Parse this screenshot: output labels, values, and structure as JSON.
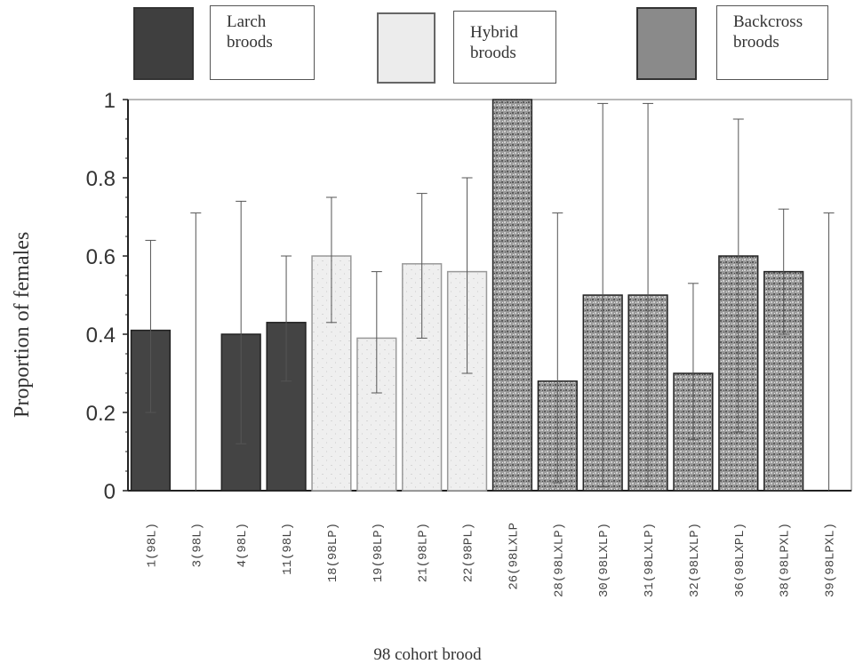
{
  "legend": {
    "items": [
      {
        "label": "Larch\nbroods",
        "fill": "#444444"
      },
      {
        "label": "Hybrid\nbroods",
        "fill": "#e8e8e8"
      },
      {
        "label": "Backcross\nbroods",
        "fill": "#8a8a8a"
      }
    ]
  },
  "chart_data": {
    "type": "bar",
    "title": "",
    "xlabel": "98 cohort brood",
    "ylabel": "Proportion of females",
    "ylim": [
      0,
      1
    ],
    "yticks": [
      "0",
      "0.2",
      "0.4",
      "0.6",
      "0.8",
      "1"
    ],
    "grid": false,
    "categories": [
      "1(98L)",
      "3(98L)",
      "4(98L)",
      "11(98L)",
      "18(98LP)",
      "19(98LP)",
      "21(98LP)",
      "22(98PL)",
      "26(98LXLP",
      "28(98LXLP)",
      "30(98LXLP)",
      "31(98LXLP)",
      "32(98LXLP)",
      "36(98LXPL)",
      "38(98LPXL)",
      "39(98LPXL)"
    ],
    "groups": [
      "Larch",
      "Larch",
      "Larch",
      "Larch",
      "Hybrid",
      "Hybrid",
      "Hybrid",
      "Hybrid",
      "Backcross",
      "Backcross",
      "Backcross",
      "Backcross",
      "Backcross",
      "Backcross",
      "Backcross",
      "Backcross"
    ],
    "values": [
      0.41,
      0,
      0.4,
      0.43,
      0.6,
      0.39,
      0.58,
      0.56,
      1.0,
      0.28,
      0.5,
      0.5,
      0.3,
      0.6,
      0.56,
      0
    ],
    "error_lower": [
      0.2,
      0,
      0.12,
      0.28,
      0.43,
      0.25,
      0.39,
      0.3,
      1.0,
      0.02,
      0.01,
      0.01,
      0.13,
      0.15,
      0.4,
      0
    ],
    "error_upper": [
      0.64,
      0.71,
      0.74,
      0.6,
      0.75,
      0.56,
      0.76,
      0.8,
      1.0,
      0.71,
      0.99,
      0.99,
      0.53,
      0.95,
      0.72,
      0.71
    ],
    "colors": {
      "Larch": "#444444",
      "Hybrid": "#ececec",
      "Backcross": "#8a8a8a"
    }
  }
}
